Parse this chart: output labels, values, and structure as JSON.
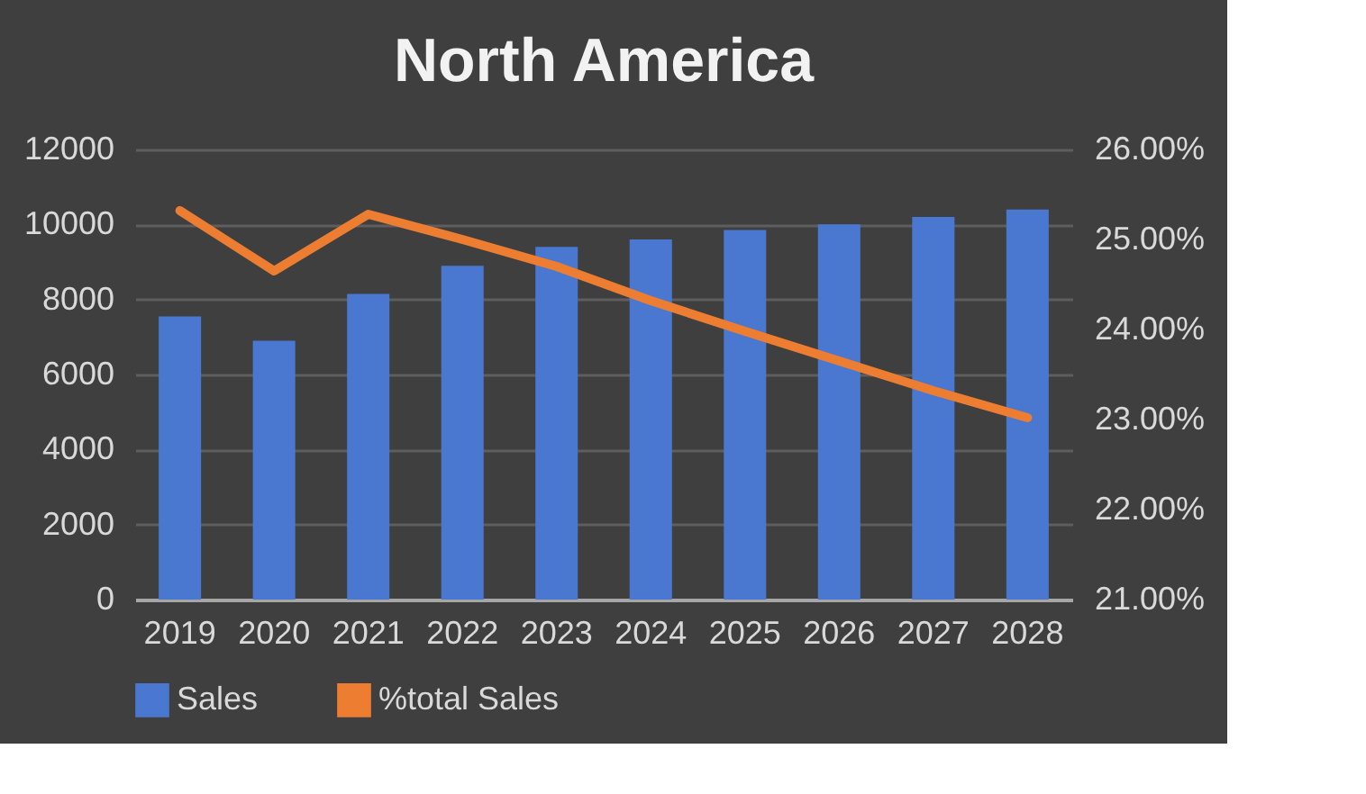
{
  "chart_data": {
    "type": "bar",
    "title": "North America",
    "categories": [
      "2019",
      "2020",
      "2021",
      "2022",
      "2023",
      "2024",
      "2025",
      "2026",
      "2027",
      "2028"
    ],
    "series": [
      {
        "name": "Sales",
        "color": "#4a78d0",
        "values": [
          7550,
          6900,
          8150,
          8900,
          9400,
          9600,
          9850,
          10000,
          10200,
          10400
        ]
      },
      {
        "name": "%total Sales",
        "type": "line",
        "axis": "y2",
        "color": "#ed7d31",
        "values": [
          25.32,
          24.65,
          25.28,
          25.0,
          24.7,
          24.32,
          23.98,
          23.65,
          23.32,
          23.02
        ]
      }
    ],
    "ylim": [
      0,
      12000
    ],
    "yticks": [
      0,
      2000,
      4000,
      6000,
      8000,
      10000,
      12000
    ],
    "y2lim": [
      21,
      26
    ],
    "y2ticks": [
      {
        "value": 21,
        "label": "21.00%"
      },
      {
        "value": 22,
        "label": "22.00%"
      },
      {
        "value": 23,
        "label": "23.00%"
      },
      {
        "value": 24,
        "label": "24.00%"
      },
      {
        "value": 25,
        "label": "25.00%"
      },
      {
        "value": 26,
        "label": "26.00%"
      }
    ],
    "grid": "y",
    "legend": "bottom",
    "marker": "none",
    "line_style": "solid"
  }
}
